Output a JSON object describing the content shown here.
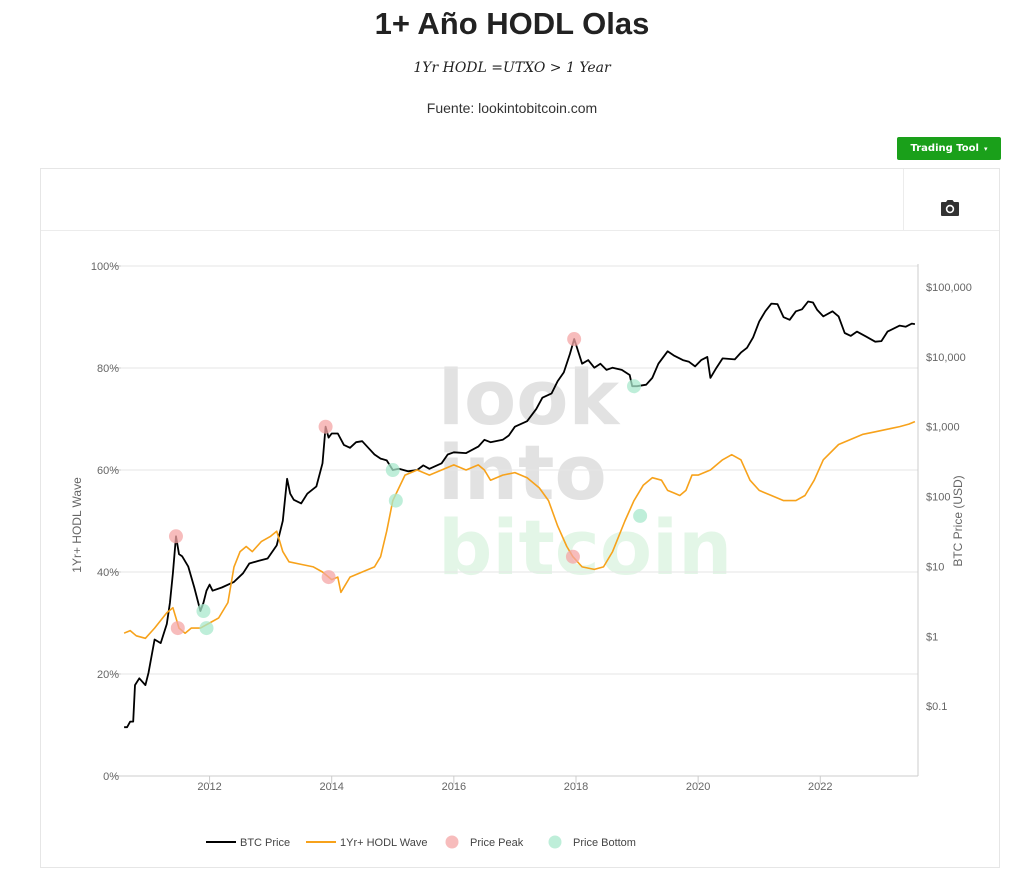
{
  "header": {
    "title": "1+ Año HODL Olas",
    "formula": "1Yr HODL =UTXO > 1 Year",
    "source": "Fuente: lookintobitcoin.com"
  },
  "toolbar": {
    "trading_tool_label": "Trading Tool",
    "caret": "▾"
  },
  "watermark": {
    "lines": [
      "look",
      "into",
      "bitcoin"
    ]
  },
  "colors": {
    "btc": "#000000",
    "hodl": "#f7a21b",
    "peak": "#f4a6a6",
    "bottom": "#a8e8cc",
    "button": "#1aa01a",
    "grid": "#e6e6e6"
  },
  "chart_data": {
    "type": "line",
    "title": "1+ Año HODL Olas",
    "xlabel": "",
    "ylabel_left": "1Yr+ HODL Wave",
    "ylabel_right": "BTC Price (USD)",
    "x_ticks": [
      "2012",
      "2014",
      "2016",
      "2018",
      "2020",
      "2022"
    ],
    "x_tick_values": [
      2012,
      2014,
      2016,
      2018,
      2020,
      2022
    ],
    "xlim": [
      2010.55,
      2023.6
    ],
    "y_left_ticks": [
      "0%",
      "20%",
      "40%",
      "60%",
      "80%",
      "100%"
    ],
    "y_left_tick_values": [
      0,
      20,
      40,
      60,
      80,
      100
    ],
    "ylim_left": [
      0,
      100
    ],
    "y_right_ticks": [
      "$0.1",
      "$1",
      "$10",
      "$100",
      "$1,000",
      "$10,000",
      "$100,000"
    ],
    "y_right_tick_values": [
      0.1,
      1,
      10,
      100,
      1000,
      10000,
      100000
    ],
    "ylim_right_log": [
      0.01,
      200000
    ],
    "series": [
      {
        "name": "BTC Price",
        "axis": "right",
        "scale": "log",
        "points": [
          [
            2010.6,
            0.05
          ],
          [
            2010.65,
            0.05
          ],
          [
            2010.7,
            0.06
          ],
          [
            2010.75,
            0.06
          ],
          [
            2010.78,
            0.2
          ],
          [
            2010.85,
            0.25
          ],
          [
            2010.95,
            0.2
          ],
          [
            2011.0,
            0.3
          ],
          [
            2011.1,
            0.9
          ],
          [
            2011.2,
            0.8
          ],
          [
            2011.3,
            1.5
          ],
          [
            2011.35,
            3
          ],
          [
            2011.4,
            8
          ],
          [
            2011.45,
            27
          ],
          [
            2011.5,
            15
          ],
          [
            2011.55,
            14
          ],
          [
            2011.65,
            10
          ],
          [
            2011.75,
            5
          ],
          [
            2011.85,
            2.3
          ],
          [
            2011.9,
            3
          ],
          [
            2011.95,
            4.5
          ],
          [
            2012.0,
            5.5
          ],
          [
            2012.05,
            4.5
          ],
          [
            2012.2,
            5
          ],
          [
            2012.4,
            6
          ],
          [
            2012.55,
            8
          ],
          [
            2012.65,
            11
          ],
          [
            2012.8,
            12
          ],
          [
            2012.95,
            13
          ],
          [
            2013.1,
            20
          ],
          [
            2013.2,
            45
          ],
          [
            2013.27,
            180
          ],
          [
            2013.32,
            110
          ],
          [
            2013.38,
            90
          ],
          [
            2013.5,
            80
          ],
          [
            2013.6,
            110
          ],
          [
            2013.75,
            140
          ],
          [
            2013.85,
            300
          ],
          [
            2013.9,
            1000
          ],
          [
            2013.95,
            700
          ],
          [
            2014.0,
            800
          ],
          [
            2014.1,
            800
          ],
          [
            2014.2,
            550
          ],
          [
            2014.3,
            500
          ],
          [
            2014.4,
            600
          ],
          [
            2014.5,
            620
          ],
          [
            2014.6,
            500
          ],
          [
            2014.7,
            400
          ],
          [
            2014.8,
            350
          ],
          [
            2014.9,
            330
          ],
          [
            2015.0,
            240
          ],
          [
            2015.1,
            250
          ],
          [
            2015.25,
            230
          ],
          [
            2015.4,
            240
          ],
          [
            2015.5,
            280
          ],
          [
            2015.6,
            250
          ],
          [
            2015.8,
            300
          ],
          [
            2015.9,
            400
          ],
          [
            2016.0,
            430
          ],
          [
            2016.2,
            420
          ],
          [
            2016.4,
            520
          ],
          [
            2016.5,
            650
          ],
          [
            2016.6,
            600
          ],
          [
            2016.8,
            650
          ],
          [
            2016.9,
            750
          ],
          [
            2017.0,
            1000
          ],
          [
            2017.2,
            1200
          ],
          [
            2017.35,
            1800
          ],
          [
            2017.45,
            2600
          ],
          [
            2017.6,
            3000
          ],
          [
            2017.7,
            4500
          ],
          [
            2017.8,
            6000
          ],
          [
            2017.9,
            11000
          ],
          [
            2017.97,
            18000
          ],
          [
            2018.05,
            11000
          ],
          [
            2018.1,
            8000
          ],
          [
            2018.2,
            9000
          ],
          [
            2018.3,
            7000
          ],
          [
            2018.4,
            8000
          ],
          [
            2018.5,
            6500
          ],
          [
            2018.6,
            7000
          ],
          [
            2018.75,
            6500
          ],
          [
            2018.88,
            5500
          ],
          [
            2018.92,
            3800
          ],
          [
            2019.0,
            3800
          ],
          [
            2019.15,
            4000
          ],
          [
            2019.25,
            5000
          ],
          [
            2019.35,
            8000
          ],
          [
            2019.5,
            12000
          ],
          [
            2019.6,
            10500
          ],
          [
            2019.75,
            9000
          ],
          [
            2019.85,
            8500
          ],
          [
            2019.95,
            7300
          ],
          [
            2020.05,
            9000
          ],
          [
            2020.15,
            10000
          ],
          [
            2020.2,
            5000
          ],
          [
            2020.3,
            7000
          ],
          [
            2020.4,
            9500
          ],
          [
            2020.6,
            9200
          ],
          [
            2020.7,
            11500
          ],
          [
            2020.8,
            13500
          ],
          [
            2020.9,
            19000
          ],
          [
            2021.0,
            32000
          ],
          [
            2021.1,
            45000
          ],
          [
            2021.2,
            58000
          ],
          [
            2021.3,
            57000
          ],
          [
            2021.4,
            37000
          ],
          [
            2021.5,
            34000
          ],
          [
            2021.6,
            45000
          ],
          [
            2021.7,
            48000
          ],
          [
            2021.8,
            62000
          ],
          [
            2021.88,
            60000
          ],
          [
            2021.95,
            47000
          ],
          [
            2022.05,
            38000
          ],
          [
            2022.2,
            45000
          ],
          [
            2022.3,
            38000
          ],
          [
            2022.4,
            22000
          ],
          [
            2022.5,
            20000
          ],
          [
            2022.6,
            23000
          ],
          [
            2022.75,
            19500
          ],
          [
            2022.9,
            16500
          ],
          [
            2023.0,
            16800
          ],
          [
            2023.1,
            23000
          ],
          [
            2023.3,
            28000
          ],
          [
            2023.4,
            27000
          ],
          [
            2023.5,
            30000
          ],
          [
            2023.55,
            29500
          ]
        ]
      },
      {
        "name": "1Yr+ HODL Wave",
        "axis": "left",
        "points": [
          [
            2010.6,
            28
          ],
          [
            2010.7,
            28.5
          ],
          [
            2010.8,
            27.5
          ],
          [
            2010.95,
            27
          ],
          [
            2011.1,
            29
          ],
          [
            2011.3,
            32
          ],
          [
            2011.4,
            33
          ],
          [
            2011.5,
            29
          ],
          [
            2011.6,
            28
          ],
          [
            2011.7,
            29
          ],
          [
            2011.85,
            29
          ],
          [
            2012.0,
            30
          ],
          [
            2012.15,
            31
          ],
          [
            2012.3,
            34
          ],
          [
            2012.4,
            41
          ],
          [
            2012.5,
            44
          ],
          [
            2012.6,
            45
          ],
          [
            2012.7,
            44
          ],
          [
            2012.85,
            46
          ],
          [
            2013.0,
            47
          ],
          [
            2013.1,
            48
          ],
          [
            2013.2,
            44
          ],
          [
            2013.3,
            42
          ],
          [
            2013.5,
            41.5
          ],
          [
            2013.7,
            41
          ],
          [
            2013.85,
            40
          ],
          [
            2014.0,
            38.5
          ],
          [
            2014.1,
            39
          ],
          [
            2014.15,
            36
          ],
          [
            2014.2,
            37
          ],
          [
            2014.3,
            39
          ],
          [
            2014.5,
            40
          ],
          [
            2014.7,
            41
          ],
          [
            2014.8,
            43
          ],
          [
            2014.9,
            48
          ],
          [
            2015.0,
            54
          ],
          [
            2015.2,
            59
          ],
          [
            2015.4,
            60
          ],
          [
            2015.6,
            59
          ],
          [
            2015.8,
            60
          ],
          [
            2016.0,
            61
          ],
          [
            2016.2,
            60
          ],
          [
            2016.4,
            61
          ],
          [
            2016.5,
            60
          ],
          [
            2016.6,
            58
          ],
          [
            2016.8,
            59
          ],
          [
            2017.0,
            59.5
          ],
          [
            2017.2,
            58.5
          ],
          [
            2017.4,
            56.5
          ],
          [
            2017.55,
            54
          ],
          [
            2017.7,
            49
          ],
          [
            2017.85,
            45
          ],
          [
            2017.95,
            43
          ],
          [
            2018.1,
            41
          ],
          [
            2018.3,
            40.5
          ],
          [
            2018.45,
            41
          ],
          [
            2018.6,
            44
          ],
          [
            2018.8,
            50
          ],
          [
            2018.95,
            54
          ],
          [
            2019.1,
            57
          ],
          [
            2019.25,
            58.5
          ],
          [
            2019.4,
            58
          ],
          [
            2019.5,
            56
          ],
          [
            2019.6,
            55.5
          ],
          [
            2019.7,
            55
          ],
          [
            2019.8,
            56
          ],
          [
            2019.9,
            59
          ],
          [
            2020.0,
            59
          ],
          [
            2020.2,
            60
          ],
          [
            2020.4,
            62
          ],
          [
            2020.55,
            63
          ],
          [
            2020.7,
            62
          ],
          [
            2020.85,
            58
          ],
          [
            2021.0,
            56
          ],
          [
            2021.2,
            55
          ],
          [
            2021.4,
            54
          ],
          [
            2021.6,
            54
          ],
          [
            2021.75,
            55
          ],
          [
            2021.9,
            58
          ],
          [
            2022.05,
            62
          ],
          [
            2022.3,
            65
          ],
          [
            2022.5,
            66
          ],
          [
            2022.7,
            67
          ],
          [
            2022.9,
            67.5
          ],
          [
            2023.1,
            68
          ],
          [
            2023.3,
            68.5
          ],
          [
            2023.45,
            69
          ],
          [
            2023.55,
            69.5
          ]
        ]
      }
    ],
    "price_peaks": [
      [
        2011.45,
        27
      ],
      [
        2013.9,
        1000
      ],
      [
        2017.97,
        18000
      ]
    ],
    "hodl_peaks": [
      [
        2011.48,
        29
      ],
      [
        2013.95,
        39
      ],
      [
        2017.95,
        43
      ]
    ],
    "price_bottoms": [
      [
        2011.9,
        2.3
      ],
      [
        2015.0,
        240
      ],
      [
        2018.95,
        3800
      ]
    ],
    "hodl_bottoms": [
      [
        2011.95,
        29
      ],
      [
        2015.05,
        54
      ],
      [
        2019.05,
        51
      ]
    ],
    "legend": {
      "position": "bottom-center",
      "items": [
        "BTC Price",
        "1Yr+ HODL Wave",
        "Price Peak",
        "Price Bottom"
      ]
    }
  }
}
